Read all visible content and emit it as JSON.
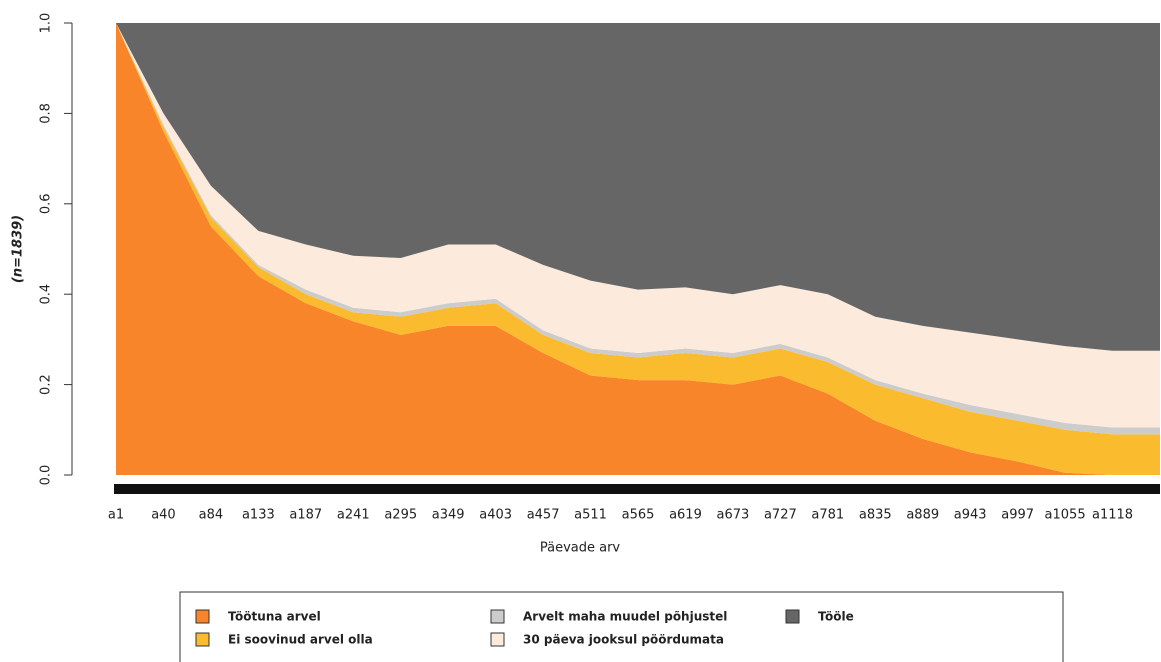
{
  "chart_data": {
    "type": "stacked_area",
    "ylabel": "(n=1839)",
    "xlabel": "Päevade arv",
    "categories": [
      "a1",
      "a40",
      "a84",
      "a133",
      "a187",
      "a241",
      "a295",
      "a349",
      "a403",
      "a457",
      "a511",
      "a565",
      "a619",
      "a673",
      "a727",
      "a781",
      "a835",
      "a889",
      "a943",
      "a997",
      "a1055",
      "a1118",
      null
    ],
    "series": [
      {
        "name": "Töötuna arvel",
        "color": "#f9852a",
        "values": [
          1,
          0.76,
          0.55,
          0.44,
          0.38,
          0.34,
          0.31,
          0.33,
          0.33,
          0.27,
          0.22,
          0.21,
          0.21,
          0.2,
          0.22,
          0.18,
          0.12,
          0.08,
          0.05,
          0.03,
          0.005,
          0,
          0
        ]
      },
      {
        "name": "Ei soovinud arvel olla",
        "color": "#fbbb2e",
        "values": [
          0,
          0.01,
          0.02,
          0.02,
          0.02,
          0.02,
          0.04,
          0.04,
          0.05,
          0.04,
          0.05,
          0.05,
          0.06,
          0.06,
          0.06,
          0.07,
          0.08,
          0.09,
          0.09,
          0.09,
          0.095,
          0.09,
          0.09
        ]
      },
      {
        "name": "Arvelt maha muudel põhjustel",
        "color": "#cccccc",
        "values": [
          0,
          0.005,
          0.005,
          0.005,
          0.01,
          0.01,
          0.01,
          0.01,
          0.01,
          0.01,
          0.01,
          0.01,
          0.01,
          0.01,
          0.01,
          0.01,
          0.01,
          0.01,
          0.015,
          0.015,
          0.015,
          0.015,
          0.015
        ]
      },
      {
        "name": "30 päeva jooksul pöördumata",
        "color": "#fcebdd",
        "values": [
          0,
          0.025,
          0.065,
          0.075,
          0.1,
          0.115,
          0.12,
          0.13,
          0.12,
          0.145,
          0.15,
          0.14,
          0.135,
          0.13,
          0.13,
          0.14,
          0.14,
          0.15,
          0.16,
          0.165,
          0.17,
          0.17,
          0.17
        ]
      },
      {
        "name": "Tööle",
        "color": "#666666",
        "values": [
          0,
          0.2,
          0.36,
          0.46,
          0.49,
          0.515,
          0.52,
          0.49,
          0.49,
          0.535,
          0.57,
          0.59,
          0.585,
          0.6,
          0.58,
          0.6,
          0.65,
          0.67,
          0.685,
          0.7,
          0.715,
          0.725,
          0.725
        ]
      }
    ],
    "ylim": [
      0,
      1
    ],
    "yticks": [
      {
        "value": 0,
        "label": "0.0"
      },
      0.2,
      0.4,
      0.6,
      0.8,
      {
        "value": 1,
        "label": "1.0"
      }
    ]
  }
}
